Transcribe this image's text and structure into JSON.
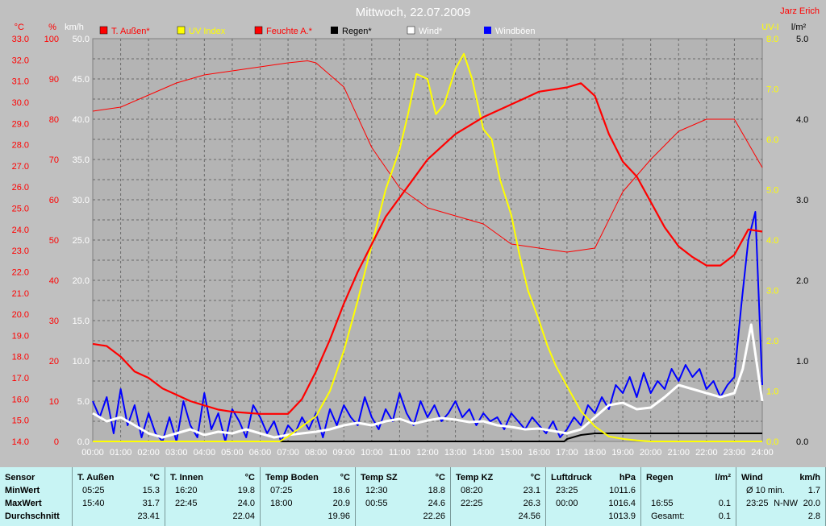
{
  "chart_data": {
    "type": "line",
    "title": "Mittwoch, 22.07.2009",
    "author": "Jarz Erich",
    "x_labels": [
      "00:00",
      "01:00",
      "02:00",
      "03:00",
      "04:00",
      "05:00",
      "06:00",
      "07:00",
      "08:00",
      "09:00",
      "10:00",
      "11:00",
      "12:00",
      "13:00",
      "14:00",
      "15:00",
      "16:00",
      "17:00",
      "18:00",
      "19:00",
      "20:00",
      "21:00",
      "22:00",
      "23:00",
      "24:00"
    ],
    "axes": {
      "temp": {
        "unit": "°C",
        "ticks": [
          "14.0",
          "15.0",
          "16.0",
          "17.0",
          "18.0",
          "19.0",
          "20.0",
          "21.0",
          "22.0",
          "23.0",
          "24.0",
          "25.0",
          "26.0",
          "27.0",
          "28.0",
          "29.0",
          "30.0",
          "31.0",
          "32.0",
          "33.0"
        ],
        "range": [
          14,
          33
        ]
      },
      "humidity": {
        "unit": "%",
        "ticks": [
          "0",
          "10",
          "20",
          "30",
          "40",
          "50",
          "60",
          "70",
          "80",
          "90",
          "100"
        ],
        "range": [
          0,
          100
        ]
      },
      "wind": {
        "unit": "km/h",
        "ticks": [
          "0.0",
          "5.0",
          "10.0",
          "15.0",
          "20.0",
          "25.0",
          "30.0",
          "35.0",
          "40.0",
          "45.0",
          "50.0"
        ],
        "range": [
          0,
          50
        ]
      },
      "uv": {
        "unit": "UV-I",
        "ticks": [
          "0.0",
          "1.0",
          "2.0",
          "3.0",
          "4.0",
          "5.0",
          "6.0",
          "7.0",
          "8.0"
        ],
        "range": [
          0,
          8
        ]
      },
      "rain": {
        "unit": "l/m²",
        "ticks": [
          "0.0",
          "1.0",
          "2.0",
          "3.0",
          "4.0",
          "5.0"
        ],
        "range": [
          0,
          5
        ]
      }
    },
    "grid": true,
    "legend_position": "top",
    "series": [
      {
        "name": "T. Außen*",
        "color": "#ff0000",
        "axis": "temp",
        "x": [
          0,
          0.5,
          1,
          1.5,
          2,
          2.5,
          3,
          3.5,
          4,
          4.5,
          5,
          5.5,
          6,
          6.5,
          7,
          7.5,
          8,
          8.5,
          9,
          9.5,
          10,
          10.5,
          11,
          11.5,
          12,
          12.5,
          13,
          13.5,
          14,
          14.5,
          15,
          15.5,
          16,
          16.5,
          17,
          17.5,
          18,
          18.5,
          19,
          19.5,
          20,
          20.5,
          21,
          21.5,
          22,
          22.5,
          23,
          23.5,
          24
        ],
        "y": [
          18.6,
          18.5,
          18.0,
          17.3,
          17.0,
          16.5,
          16.2,
          15.9,
          15.7,
          15.5,
          15.4,
          15.35,
          15.3,
          15.3,
          15.3,
          16.0,
          17.3,
          18.8,
          20.5,
          22.0,
          23.3,
          24.6,
          25.5,
          26.4,
          27.3,
          27.9,
          28.5,
          28.9,
          29.3,
          29.6,
          29.9,
          30.2,
          30.5,
          30.6,
          30.7,
          30.9,
          30.3,
          28.5,
          27.2,
          26.5,
          25.3,
          24.1,
          23.2,
          22.7,
          22.3,
          22.3,
          22.8,
          24.0,
          23.9
        ]
      },
      {
        "name": "UV Index",
        "color": "#ffff00",
        "axis": "uv",
        "x": [
          0,
          6,
          6.7,
          7,
          7.5,
          8,
          8.5,
          9,
          9.5,
          10,
          10.5,
          11,
          11.3,
          11.6,
          12,
          12.3,
          12.6,
          13,
          13.3,
          13.6,
          14,
          14.3,
          14.6,
          15,
          15.3,
          15.6,
          16,
          16.3,
          16.6,
          17,
          17.5,
          18,
          18.5,
          19,
          19.5,
          20,
          24
        ],
        "y": [
          0,
          0,
          0,
          0.1,
          0.3,
          0.5,
          1.0,
          1.8,
          2.8,
          3.9,
          5.0,
          5.8,
          6.5,
          7.3,
          7.2,
          6.5,
          6.7,
          7.4,
          7.7,
          7.2,
          6.2,
          6.0,
          5.2,
          4.5,
          3.7,
          3.0,
          2.4,
          1.9,
          1.5,
          1.1,
          0.6,
          0.3,
          0.1,
          0.05,
          0.02,
          0,
          0
        ]
      },
      {
        "name": "Feuchte A.*",
        "color": "#ff0000",
        "axis": "humidity",
        "x": [
          0,
          1,
          2,
          3,
          4,
          5,
          6,
          7,
          7.7,
          8,
          9,
          10,
          11,
          12,
          13,
          14,
          15,
          16,
          17,
          18,
          19,
          20,
          21,
          22,
          22.5,
          23,
          24
        ],
        "y": [
          82,
          83,
          86,
          89,
          91,
          92,
          93,
          94,
          94.5,
          94,
          88,
          73,
          63,
          58,
          56,
          54,
          49,
          48,
          47,
          48,
          62,
          70,
          77,
          80,
          80,
          80,
          68
        ]
      },
      {
        "name": "Regen*",
        "color": "#000000",
        "axis": "rain",
        "x": [
          0,
          16.9,
          17.0,
          17.5,
          18,
          24
        ],
        "y": [
          0,
          0,
          0.03,
          0.08,
          0.1,
          0.1
        ]
      },
      {
        "name": "Wind*",
        "color": "#ffffff",
        "axis": "wind",
        "x": [
          0,
          0.5,
          1,
          1.5,
          2,
          2.5,
          3,
          3.5,
          4,
          4.5,
          5,
          5.5,
          6,
          6.5,
          7,
          7.5,
          8,
          8.5,
          9,
          9.5,
          10,
          10.5,
          11,
          11.5,
          12,
          12.5,
          13,
          13.5,
          14,
          14.5,
          15,
          15.5,
          16,
          16.5,
          17,
          17.5,
          18,
          18.5,
          19,
          19.5,
          20,
          20.5,
          21,
          21.5,
          22,
          22.5,
          23,
          23.3,
          23.6,
          24
        ],
        "y": [
          3.5,
          2.5,
          3.0,
          2.0,
          1.0,
          0.5,
          1.0,
          1.5,
          0.8,
          1.2,
          1.0,
          1.5,
          1.0,
          0.5,
          0.8,
          1.0,
          1.2,
          1.5,
          2.0,
          2.3,
          2.0,
          2.5,
          2.8,
          2.2,
          2.6,
          2.9,
          2.7,
          2.4,
          2.5,
          2.0,
          1.8,
          1.5,
          1.6,
          1.3,
          1.0,
          1.5,
          3.0,
          4.5,
          4.8,
          4.0,
          4.2,
          5.5,
          7.0,
          6.5,
          6.0,
          5.5,
          6.0,
          9.0,
          14.5,
          5.0
        ]
      },
      {
        "name": "Windböen",
        "color": "#0000ff",
        "axis": "wind",
        "x": [
          0,
          0.25,
          0.5,
          0.75,
          1,
          1.25,
          1.5,
          1.75,
          2,
          2.25,
          2.5,
          2.75,
          3,
          3.25,
          3.5,
          3.75,
          4,
          4.25,
          4.5,
          4.75,
          5,
          5.25,
          5.5,
          5.75,
          6,
          6.25,
          6.5,
          6.75,
          7,
          7.25,
          7.5,
          7.75,
          8,
          8.25,
          8.5,
          8.75,
          9,
          9.25,
          9.5,
          9.75,
          10,
          10.25,
          10.5,
          10.75,
          11,
          11.25,
          11.5,
          11.75,
          12,
          12.25,
          12.5,
          12.75,
          13,
          13.25,
          13.5,
          13.75,
          14,
          14.25,
          14.5,
          14.75,
          15,
          15.25,
          15.5,
          15.75,
          16,
          16.25,
          16.5,
          16.75,
          17,
          17.25,
          17.5,
          17.75,
          18,
          18.25,
          18.5,
          18.75,
          19,
          19.25,
          19.5,
          19.75,
          20,
          20.25,
          20.5,
          20.75,
          21,
          21.25,
          21.5,
          21.75,
          22,
          22.25,
          22.5,
          22.75,
          23,
          23.25,
          23.5,
          23.75,
          24
        ],
        "y": [
          5.0,
          3.0,
          5.5,
          1.0,
          6.5,
          2.0,
          4.5,
          0.5,
          3.5,
          1.0,
          0,
          3.0,
          0,
          5.0,
          2.0,
          0.5,
          6.0,
          1.5,
          3.5,
          0,
          4.0,
          2.5,
          0.5,
          4.5,
          3.0,
          1.0,
          2.5,
          0,
          2.0,
          1.0,
          3.0,
          1.5,
          3.5,
          0.5,
          4.0,
          2.0,
          4.5,
          3.0,
          2.0,
          5.5,
          3.0,
          1.5,
          4.0,
          2.5,
          6.0,
          3.5,
          2.0,
          5.0,
          3.0,
          4.5,
          2.5,
          3.5,
          5.0,
          3.0,
          4.0,
          2.0,
          3.5,
          2.5,
          3.0,
          1.5,
          3.5,
          2.5,
          1.5,
          3.0,
          2.0,
          1.0,
          2.5,
          0.5,
          1.5,
          3.0,
          2.0,
          4.5,
          3.5,
          5.5,
          4.0,
          7.0,
          6.0,
          8.0,
          5.5,
          8.5,
          6.0,
          7.5,
          6.5,
          9.0,
          7.5,
          9.5,
          8.0,
          9.0,
          6.5,
          7.5,
          5.5,
          7.0,
          8.0,
          17.0,
          25.0,
          28.5,
          7.0
        ]
      }
    ]
  },
  "legend": {
    "t_aussen": "T. Außen*",
    "uv_index": "UV Index",
    "feuchte": "Feuchte A.*",
    "regen": "Regen*",
    "wind": "Wind*",
    "windboeen": "Windböen"
  },
  "table": {
    "labels": {
      "sensor": "Sensor",
      "min": "MinWert",
      "max": "MaxWert",
      "avg": "Durchschnitt"
    },
    "cols": [
      {
        "title": "T. Außen",
        "unit": "°C",
        "min_time": "05:25",
        "min_val": "15.3",
        "max_time": "15:40",
        "max_val": "31.7",
        "avg": "23.41"
      },
      {
        "title": "T. Innen",
        "unit": "°C",
        "min_time": "16:20",
        "min_val": "19.8",
        "max_time": "22:45",
        "max_val": "24.0",
        "avg": "22.04"
      },
      {
        "title": "Temp Boden",
        "unit": "°C",
        "min_time": "07:25",
        "min_val": "18.6",
        "max_time": "18:00",
        "max_val": "20.9",
        "avg": "19.96"
      },
      {
        "title": "Temp SZ",
        "unit": "°C",
        "min_time": "12:30",
        "min_val": "18.8",
        "max_time": "00:55",
        "max_val": "24.6",
        "avg": "22.26"
      },
      {
        "title": "Temp KZ",
        "unit": "°C",
        "min_time": "08:20",
        "min_val": "23.1",
        "max_time": "22:25",
        "max_val": "26.3",
        "avg": "24.56"
      },
      {
        "title": "Luftdruck",
        "unit": "hPa",
        "min_time": "23:25",
        "min_val": "1011.6",
        "max_time": "00:00",
        "max_val": "1016.4",
        "avg": "1013.9"
      },
      {
        "title": "Regen",
        "unit": "l/m²",
        "min_time": "",
        "min_val": "",
        "max_time": "16:55",
        "max_val": "0.1",
        "avg_label": "Gesamt:",
        "avg": "0.1"
      },
      {
        "title": "Wind",
        "unit": "km/h",
        "min_time": "Ø 10 min.",
        "min_val": "1.7",
        "max_time": "23:25",
        "max_extra": "N-NW",
        "max_val": "20.0",
        "avg": "2.8"
      }
    ]
  }
}
